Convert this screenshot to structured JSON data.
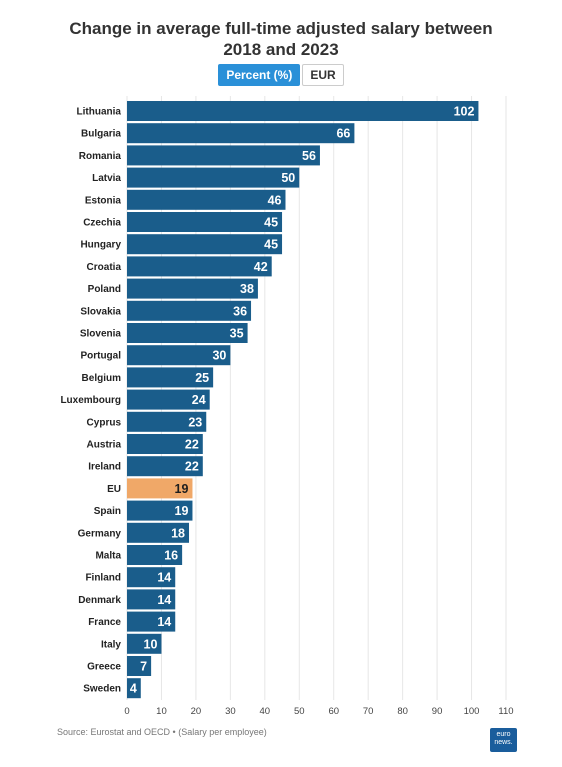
{
  "header": {
    "title_line1": "Change in average full-time adjusted salary between",
    "title_line2": "2018 and 2023"
  },
  "toggle": {
    "percent_label": "Percent (%)",
    "eur_label": "EUR",
    "selected": "Percent (%)"
  },
  "footer": {
    "source": "Source: Eurostat and OECD • (Salary per employee)",
    "logo_text_line1": "euro",
    "logo_text_line2": "news."
  },
  "colors": {
    "bar": "#1a5d8b",
    "highlight": "#f0a868",
    "grid": "#e6e6e6",
    "toggle_active": "#2a90d8"
  },
  "chart_data": {
    "type": "bar",
    "orientation": "horizontal",
    "title": "Change in average full-time adjusted salary between 2018 and 2023",
    "categories": [
      "Lithuania",
      "Bulgaria",
      "Romania",
      "Latvia",
      "Estonia",
      "Czechia",
      "Hungary",
      "Croatia",
      "Poland",
      "Slovakia",
      "Slovenia",
      "Portugal",
      "Belgium",
      "Luxembourg",
      "Cyprus",
      "Austria",
      "Ireland",
      "EU",
      "Spain",
      "Germany",
      "Malta",
      "Finland",
      "Denmark",
      "France",
      "Italy",
      "Greece",
      "Sweden"
    ],
    "values": [
      102,
      66,
      56,
      50,
      46,
      45,
      45,
      42,
      38,
      36,
      35,
      30,
      25,
      24,
      23,
      22,
      22,
      19,
      19,
      18,
      16,
      14,
      14,
      14,
      10,
      7,
      4
    ],
    "highlight": "EU",
    "xlim": [
      0,
      110
    ],
    "xticks": [
      0,
      10,
      20,
      30,
      40,
      50,
      60,
      70,
      80,
      90,
      100,
      110
    ],
    "grid": true,
    "data_labels": true
  }
}
